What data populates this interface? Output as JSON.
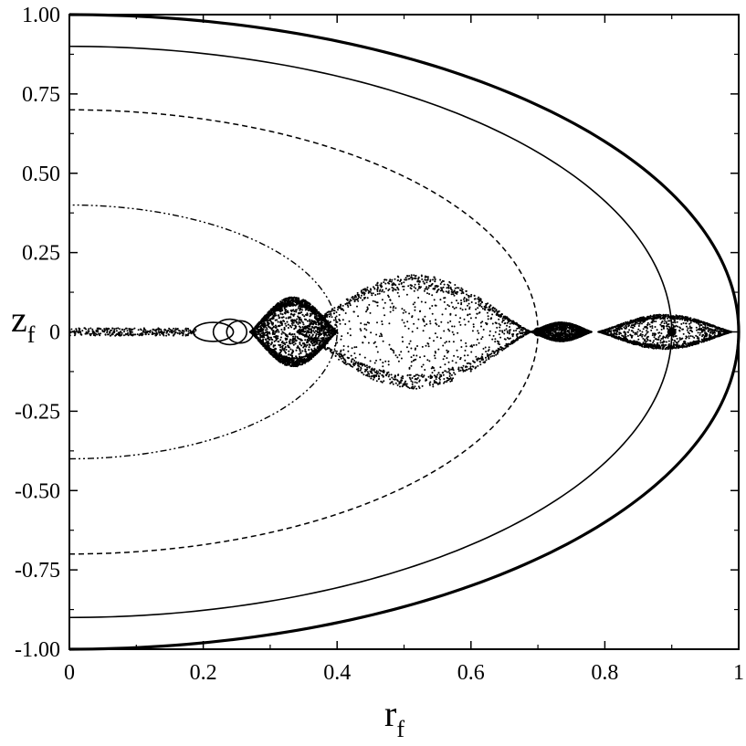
{
  "chart_data": {
    "type": "scatter",
    "title": "",
    "xlabel": {
      "main": "r",
      "sub": "f"
    },
    "ylabel": {
      "main": "z",
      "sub": "f"
    },
    "xlim": [
      0,
      1
    ],
    "ylim": [
      -1,
      1
    ],
    "grid": false,
    "x_ticks": [
      0,
      0.2,
      0.4,
      0.6,
      0.8,
      1
    ],
    "x_tick_labels": [
      "0",
      "0.2",
      "0.4",
      "0.6",
      "0.8",
      "1"
    ],
    "y_ticks": [
      1,
      0.75,
      0.5,
      0.25,
      0,
      -0.25,
      -0.5,
      -0.75,
      -1
    ],
    "y_tick_labels": [
      "1.00",
      "0.75",
      "0.50",
      "0.25",
      "0",
      "-0.25",
      "-0.50",
      "-0.75",
      "-1.00"
    ],
    "curves": [
      {
        "shape": "semi-ellipse",
        "radius": 1.0,
        "style": "thick-solid"
      },
      {
        "shape": "semi-ellipse",
        "radius": 0.9,
        "style": "solid"
      },
      {
        "shape": "semi-ellipse",
        "radius": 0.7,
        "style": "dashed"
      },
      {
        "shape": "semi-ellipse",
        "radius": 0.4,
        "style": "dash-dot-dot"
      }
    ],
    "point_clouds": [
      {
        "x_range": [
          0.34,
          0.69
        ],
        "z_halfwidth": 0.18,
        "density": "medium"
      },
      {
        "x_range": [
          0.27,
          0.4
        ],
        "z_halfwidth": 0.11,
        "density": "dense"
      },
      {
        "x_range": [
          0.69,
          0.78
        ],
        "z_halfwidth": 0.03,
        "density": "dense"
      },
      {
        "x_range": [
          0.79,
          0.99
        ],
        "z_halfwidth": 0.055,
        "density": "medium"
      },
      {
        "x_range": [
          0.0,
          0.19
        ],
        "z_halfwidth": 0.012,
        "density": "sparse"
      }
    ],
    "markers": [
      {
        "x": 0.7,
        "y": 0.0
      },
      {
        "x": 0.9,
        "y": 0.0
      }
    ]
  }
}
